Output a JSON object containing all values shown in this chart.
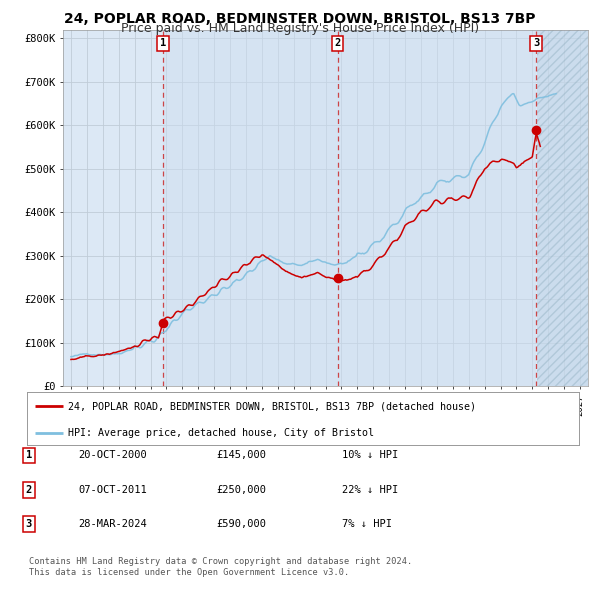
{
  "title": "24, POPLAR ROAD, BEDMINSTER DOWN, BRISTOL, BS13 7BP",
  "subtitle": "Price paid vs. HM Land Registry's House Price Index (HPI)",
  "title_fontsize": 10,
  "subtitle_fontsize": 9,
  "bg_color": "#ffffff",
  "plot_bg_color": "#dce8f5",
  "grid_color": "#c0ccd8",
  "sale_dates_num": [
    2000.8,
    2011.77,
    2024.24
  ],
  "sale_prices": [
    145000,
    250000,
    590000
  ],
  "sale_labels": [
    "1",
    "2",
    "3"
  ],
  "legend_line1": "24, POPLAR ROAD, BEDMINSTER DOWN, BRISTOL, BS13 7BP (detached house)",
  "legend_line2": "HPI: Average price, detached house, City of Bristol",
  "table_data": [
    [
      "1",
      "20-OCT-2000",
      "£145,000",
      "10% ↓ HPI"
    ],
    [
      "2",
      "07-OCT-2011",
      "£250,000",
      "22% ↓ HPI"
    ],
    [
      "3",
      "28-MAR-2024",
      "£590,000",
      "7% ↓ HPI"
    ]
  ],
  "footer1": "Contains HM Land Registry data © Crown copyright and database right 2024.",
  "footer2": "This data is licensed under the Open Government Licence v3.0.",
  "xmin": 1994.5,
  "xmax": 2027.5,
  "ymin": 0,
  "ymax": 820000,
  "yticks": [
    0,
    100000,
    200000,
    300000,
    400000,
    500000,
    600000,
    700000,
    800000
  ],
  "ytick_labels": [
    "£0",
    "£100K",
    "£200K",
    "£300K",
    "£400K",
    "£500K",
    "£600K",
    "£700K",
    "£800K"
  ],
  "hpi_color": "#7fbfdf",
  "sale_color": "#cc0000",
  "dashed_color": "#cc3333",
  "future_start": 2024.3
}
